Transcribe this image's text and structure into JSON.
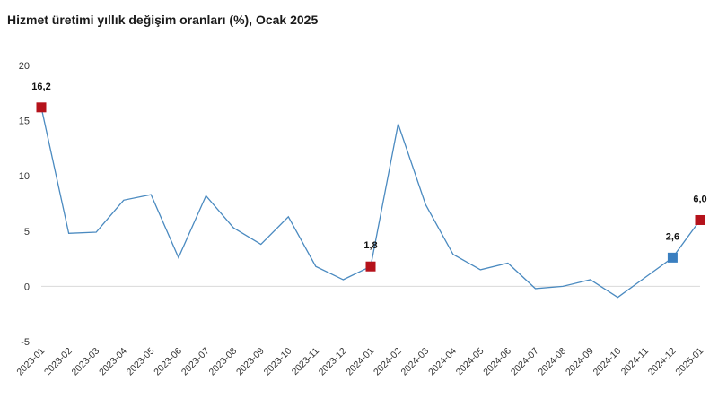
{
  "chart_data": {
    "type": "line",
    "title": "Hizmet üretimi yıllık değişim oranları (%), Ocak 2025",
    "xlabel": "",
    "ylabel": "",
    "ylim": [
      -5,
      20
    ],
    "yticks": [
      "-5",
      "0",
      "5",
      "10",
      "15",
      "20"
    ],
    "grid": false,
    "legend": "none",
    "line_color": "#4a8ac0",
    "categories": [
      "2023-01",
      "2023-02",
      "2023-03",
      "2023-04",
      "2023-05",
      "2023-06",
      "2023-07",
      "2023-08",
      "2023-09",
      "2023-10",
      "2023-11",
      "2023-12",
      "2024-01",
      "2024-02",
      "2024-03",
      "2024-04",
      "2024-05",
      "2024-06",
      "2024-07",
      "2024-08",
      "2024-09",
      "2024-10",
      "2024-11",
      "2024-12",
      "2025-01"
    ],
    "values": [
      16.2,
      4.8,
      4.9,
      7.8,
      8.3,
      2.6,
      8.2,
      5.3,
      3.8,
      6.3,
      1.8,
      0.6,
      1.8,
      14.7,
      7.4,
      2.9,
      1.5,
      2.1,
      -0.2,
      0.0,
      0.6,
      -1.0,
      0.8,
      2.6,
      6.0
    ],
    "markers": [
      {
        "index": 0,
        "label": "16,2",
        "color": "#b5121b"
      },
      {
        "index": 12,
        "label": "1,8",
        "color": "#b5121b"
      },
      {
        "index": 23,
        "label": "2,6",
        "color": "#3a7fc0"
      },
      {
        "index": 24,
        "label": "6,0",
        "color": "#b5121b"
      }
    ]
  }
}
